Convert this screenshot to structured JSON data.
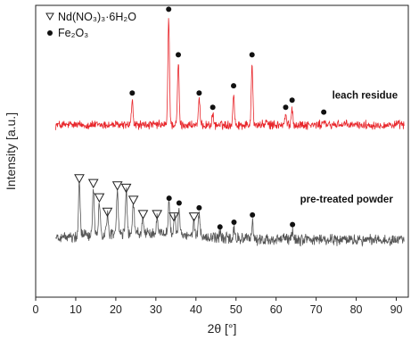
{
  "chart_data": {
    "type": "line",
    "xlabel": "2θ [°]",
    "ylabel": "Intensity [a.u.]",
    "xlim": [
      0,
      93
    ],
    "x_ticks": [
      0,
      10,
      20,
      30,
      40,
      50,
      60,
      70,
      80,
      90
    ],
    "y_ticks_shown": false,
    "grid": false,
    "legend": {
      "placement": "top-left",
      "entries": [
        {
          "marker": "triangle-down-open",
          "label": "Nd(NO₃)₃·6H₂O"
        },
        {
          "marker": "circle-filled",
          "label": "Fe₂O₃"
        }
      ]
    },
    "series": [
      {
        "name": "leach residue",
        "color": "#e8262b",
        "baseline": 0.1,
        "peaks": [
          {
            "x": 24.1,
            "h": 0.1
          },
          {
            "x": 33.2,
            "h": 0.45
          },
          {
            "x": 35.6,
            "h": 0.26
          },
          {
            "x": 40.8,
            "h": 0.1
          },
          {
            "x": 44.2,
            "h": 0.04
          },
          {
            "x": 49.4,
            "h": 0.13
          },
          {
            "x": 54.0,
            "h": 0.26
          },
          {
            "x": 62.4,
            "h": 0.04
          },
          {
            "x": 64.0,
            "h": 0.07
          },
          {
            "x": 71.9,
            "h": 0.02
          },
          {
            "x": 57.5,
            "h": 0.015
          },
          {
            "x": 75.5,
            "h": 0.01
          }
        ],
        "fe2o3_markers": [
          24.1,
          33.2,
          35.6,
          40.8,
          44.2,
          49.4,
          54.0,
          62.4,
          64.0,
          71.9
        ]
      },
      {
        "name": "pre-treated powder",
        "color": "#555555",
        "baseline": -0.38,
        "peaks": [
          {
            "x": 10.9,
            "h": 0.22
          },
          {
            "x": 14.4,
            "h": 0.2
          },
          {
            "x": 15.9,
            "h": 0.14
          },
          {
            "x": 17.9,
            "h": 0.08
          },
          {
            "x": 20.4,
            "h": 0.19
          },
          {
            "x": 22.6,
            "h": 0.18
          },
          {
            "x": 24.4,
            "h": 0.13
          },
          {
            "x": 26.8,
            "h": 0.07
          },
          {
            "x": 30.3,
            "h": 0.07
          },
          {
            "x": 33.3,
            "h": 0.14
          },
          {
            "x": 34.7,
            "h": 0.1
          },
          {
            "x": 35.8,
            "h": 0.12
          },
          {
            "x": 39.5,
            "h": 0.06
          },
          {
            "x": 40.8,
            "h": 0.1
          },
          {
            "x": 46.0,
            "h": 0.02
          },
          {
            "x": 49.5,
            "h": 0.04
          },
          {
            "x": 54.1,
            "h": 0.07
          },
          {
            "x": 64.1,
            "h": 0.03
          }
        ],
        "nd_nitrate_markers": [
          10.9,
          14.4,
          15.9,
          17.9,
          20.4,
          22.6,
          24.4,
          26.8,
          30.3,
          34.5,
          39.5
        ],
        "fe2o3_markers": [
          33.3,
          35.8,
          40.8,
          46.0,
          49.5,
          54.1,
          64.1
        ]
      }
    ]
  }
}
